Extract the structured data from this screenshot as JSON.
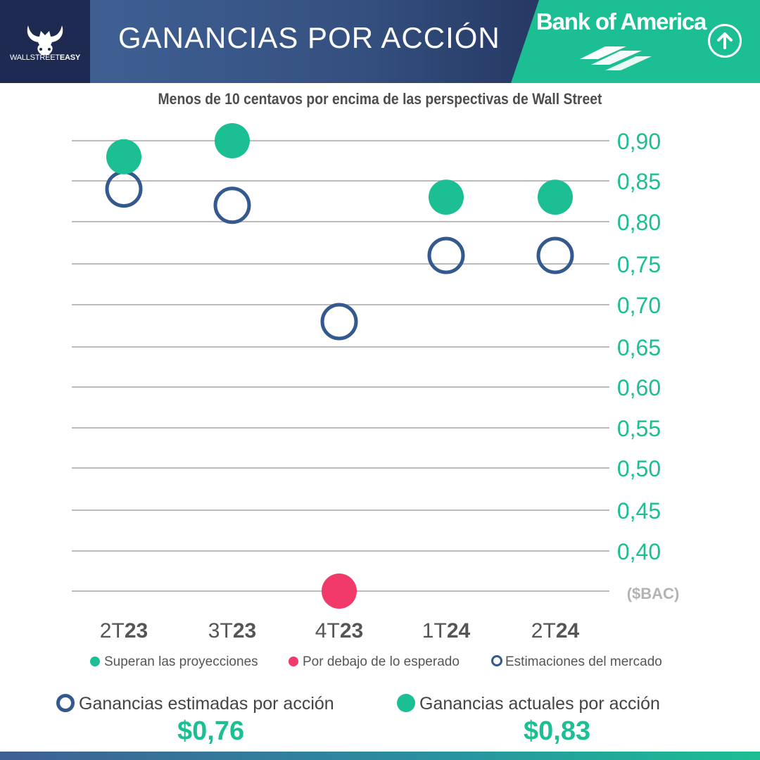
{
  "header": {
    "logo_text_regular": "WALLSTREET",
    "logo_text_bold": "EASY",
    "title": "GANANCIAS POR ACCIÓN",
    "company": "Bank of America"
  },
  "icons": {
    "logo": "bull-head-icon",
    "brand": "boa-flag-icon",
    "trend": "arrow-up-circle-icon"
  },
  "colors": {
    "green": "#1bbf93",
    "red": "#f23a6a",
    "navy": "#34598f",
    "grid": "#bcbcbc",
    "dark_band": "#1f2a52"
  },
  "chart_data": {
    "type": "scatter",
    "title": "Menos de 10 centavos por encima de las perspectivas de Wall Street",
    "ylabel": "($BAC)",
    "categories": [
      {
        "prefix": "2T",
        "bold": "23"
      },
      {
        "prefix": "3T",
        "bold": "23"
      },
      {
        "prefix": "4T",
        "bold": "23"
      },
      {
        "prefix": "1T",
        "bold": "24"
      },
      {
        "prefix": "2T",
        "bold": "24"
      }
    ],
    "yticks": [
      "0,90",
      "0,85",
      "0,80",
      "0,75",
      "0,70",
      "0,65",
      "0,60",
      "0,55",
      "0,50",
      "0,45",
      "0,40"
    ],
    "ylim": [
      0.35,
      0.9
    ],
    "grid": true,
    "series": [
      {
        "name": "Estimaciones del mercado",
        "marker": "hollow-circle",
        "values": [
          0.84,
          0.82,
          0.68,
          0.76,
          0.76
        ]
      },
      {
        "name": "Ganancias actuales por acción",
        "marker": "filled-circle",
        "values": [
          0.88,
          0.9,
          0.35,
          0.83,
          0.83
        ],
        "status": [
          "beat",
          "beat",
          "miss",
          "beat",
          "beat"
        ]
      }
    ]
  },
  "legend": {
    "beat": "Superan las proyecciones",
    "miss": "Por debajo de lo esperado",
    "estimate": "Estimaciones del mercado"
  },
  "summary": {
    "estimated_label": "Ganancias estimadas por acción",
    "estimated_value": "$0,76",
    "actual_label": "Ganancias actuales por acción",
    "actual_value": "$0,83"
  }
}
